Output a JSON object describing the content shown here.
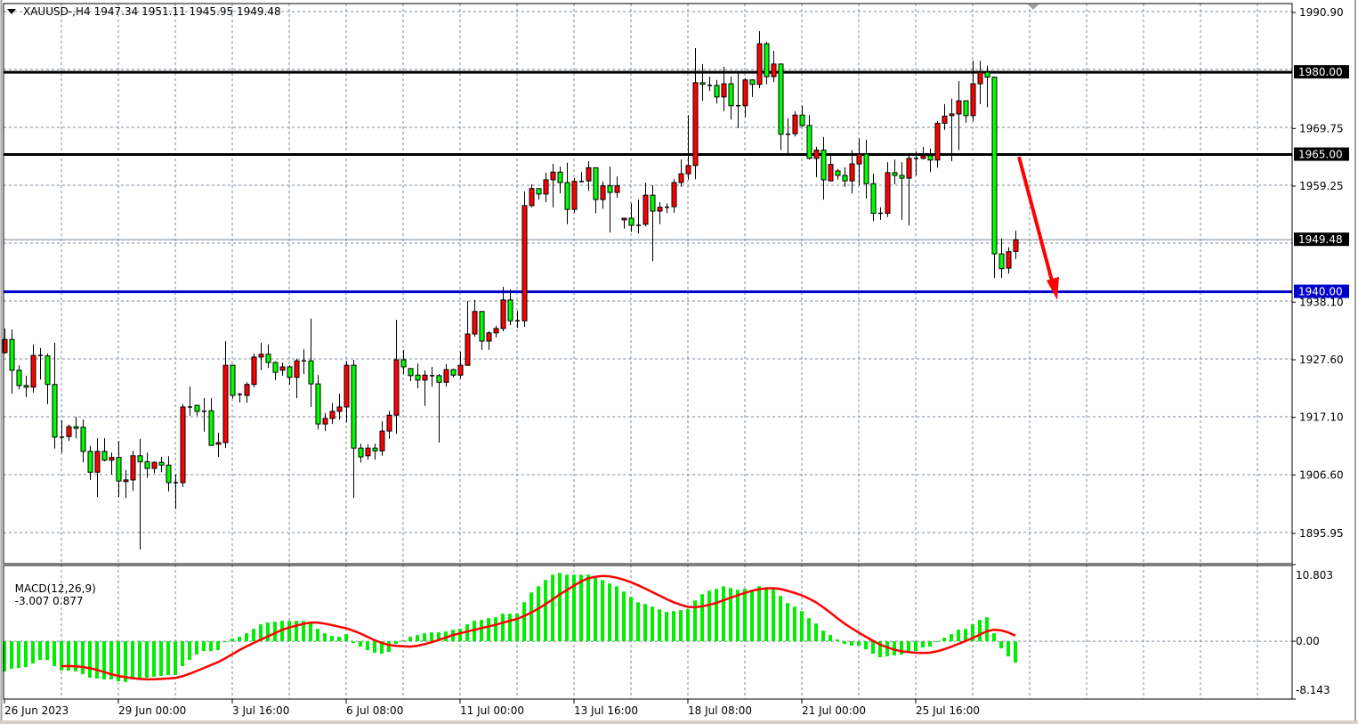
{
  "header": {
    "symbol": "XAUUSD-,H4",
    "ohlc": "1947.34 1951.11 1945.95 1949.48"
  },
  "macd_header": {
    "label": "MACD(12,26,9)",
    "values": "-3.007 0.877"
  },
  "colors": {
    "bull_candle": "#FF0000",
    "bear_candle": "#00FF00",
    "macd_histogram": "#00EE00",
    "signal_line": "#FF0000",
    "support_line": "#0000CC",
    "resistance_line": "#000000",
    "arrow": "#FF0000",
    "grid": "#778899"
  },
  "chart_data": [
    {
      "type": "candlestick",
      "symbol": "XAUUSD-",
      "timeframe": "H4",
      "ylim": [
        1890.43,
        1992.52
      ],
      "grid": true,
      "y_ticks": [
        "1990.90",
        "1969.75",
        "1959.25",
        "1938.10",
        "1927.60",
        "1917.10",
        "1906.60",
        "1895.95"
      ],
      "x_labels": [
        "26 Jun 2023",
        "29 Jun 00:00",
        "3 Jul 16:00",
        "6 Jul 08:00",
        "11 Jul 00:00",
        "13 Jul 16:00",
        "18 Jul 08:00",
        "21 Jul 00:00",
        "25 Jul 16:00"
      ],
      "bar_labels_every": 16,
      "last_price": {
        "value": 1949.48,
        "label": "1949.48"
      },
      "horizontal_lines": [
        {
          "value": 1980.0,
          "label": "1980.00",
          "color": "#000000"
        },
        {
          "value": 1965.0,
          "label": "1965.00",
          "color": "#000000"
        },
        {
          "value": 1940.0,
          "label": "1940.00",
          "color": "#0000CC"
        }
      ],
      "arrow": {
        "from_price": 1964.6,
        "to_price": 1938.5,
        "direction": "down",
        "color": "#FF0000"
      },
      "ohlc": [
        [
          1928.9,
          1933.3,
          1928.7,
          1931.3
        ],
        [
          1931.3,
          1933.1,
          1921.4,
          1925.7
        ],
        [
          1925.7,
          1926.6,
          1922.2,
          1922.9
        ],
        [
          1922.9,
          1924.7,
          1920.8,
          1922.6
        ],
        [
          1922.6,
          1930.4,
          1921.6,
          1928.4
        ],
        [
          1928.4,
          1929.7,
          1924.0,
          1928.3
        ],
        [
          1928.3,
          1928.7,
          1919.5,
          1923.1
        ],
        [
          1923.1,
          1930.7,
          1911.4,
          1913.5
        ],
        [
          1913.5,
          1916.6,
          1910.7,
          1913.4
        ],
        [
          1913.6,
          1915.8,
          1912.8,
          1915.4
        ],
        [
          1915.4,
          1917.2,
          1913.3,
          1915.1
        ],
        [
          1915.3,
          1916.7,
          1908.9,
          1910.9
        ],
        [
          1910.9,
          1911.9,
          1905.7,
          1907.1
        ],
        [
          1907.1,
          1913.3,
          1902.6,
          1910.9
        ],
        [
          1910.9,
          1913.3,
          1909.1,
          1909.3
        ],
        [
          1909.3,
          1910.7,
          1906.7,
          1909.8
        ],
        [
          1909.8,
          1912.8,
          1902.6,
          1905.5
        ],
        [
          1905.4,
          1907.5,
          1902.4,
          1905.7
        ],
        [
          1905.7,
          1911.0,
          1903.7,
          1910.1
        ],
        [
          1910.1,
          1913.2,
          1893.0,
          1909.0
        ],
        [
          1909.0,
          1910.7,
          1906.1,
          1907.8
        ],
        [
          1907.8,
          1909.1,
          1906.9,
          1908.9
        ],
        [
          1908.9,
          1909.9,
          1907.1,
          1908.4
        ],
        [
          1908.4,
          1910.0,
          1903.6,
          1905.2
        ],
        [
          1905.2,
          1906.7,
          1900.4,
          1905.1
        ],
        [
          1905.2,
          1919.5,
          1904.4,
          1919.0
        ],
        [
          1919.0,
          1922.7,
          1917.4,
          1918.9
        ],
        [
          1919.3,
          1919.3,
          1917.4,
          1918.2
        ],
        [
          1918.2,
          1920.6,
          1914.5,
          1918.1
        ],
        [
          1918.3,
          1920.6,
          1911.9,
          1912.0
        ],
        [
          1912.2,
          1914.3,
          1909.9,
          1912.5
        ],
        [
          1912.5,
          1931.0,
          1911.5,
          1926.6
        ],
        [
          1926.6,
          1926.6,
          1920.5,
          1921.1
        ],
        [
          1921.3,
          1921.6,
          1919.8,
          1921.2
        ],
        [
          1921.1,
          1923.5,
          1919.8,
          1923.1
        ],
        [
          1923.1,
          1928.7,
          1922.6,
          1928.1
        ],
        [
          1928.1,
          1930.7,
          1925.7,
          1928.6
        ],
        [
          1928.6,
          1930.4,
          1926.1,
          1927.1
        ],
        [
          1927.1,
          1927.3,
          1923.9,
          1925.3
        ],
        [
          1925.7,
          1927.1,
          1924.7,
          1926.3
        ],
        [
          1926.3,
          1926.6,
          1923.1,
          1924.4
        ],
        [
          1924.4,
          1927.8,
          1920.6,
          1927.4
        ],
        [
          1927.4,
          1929.5,
          1925.0,
          1927.3
        ],
        [
          1927.4,
          1935.1,
          1919.0,
          1923.2
        ],
        [
          1923.2,
          1924.8,
          1914.9,
          1915.9
        ],
        [
          1915.9,
          1917.9,
          1914.6,
          1916.9
        ],
        [
          1916.9,
          1919.7,
          1915.9,
          1918.2
        ],
        [
          1918.2,
          1921.4,
          1916.7,
          1919.0
        ],
        [
          1919.0,
          1927.4,
          1916.2,
          1926.6
        ],
        [
          1926.6,
          1927.6,
          1902.4,
          1911.5
        ],
        [
          1911.5,
          1912.3,
          1908.9,
          1909.9
        ],
        [
          1910.1,
          1912.2,
          1909.4,
          1911.5
        ],
        [
          1911.5,
          1912.3,
          1909.4,
          1911.0
        ],
        [
          1911.0,
          1916.4,
          1910.1,
          1914.6
        ],
        [
          1914.6,
          1918.3,
          1913.2,
          1917.5
        ],
        [
          1917.5,
          1934.9,
          1914.1,
          1927.6
        ],
        [
          1927.6,
          1929.4,
          1925.0,
          1926.3
        ],
        [
          1926.0,
          1926.1,
          1923.7,
          1924.7
        ],
        [
          1924.8,
          1926.9,
          1922.4,
          1923.9
        ],
        [
          1923.9,
          1925.7,
          1919.2,
          1924.8
        ],
        [
          1924.7,
          1926.3,
          1922.7,
          1924.6
        ],
        [
          1924.7,
          1925.0,
          1912.5,
          1923.5
        ],
        [
          1923.5,
          1926.8,
          1922.7,
          1925.8
        ],
        [
          1925.8,
          1926.0,
          1924.4,
          1924.8
        ],
        [
          1924.8,
          1929.1,
          1924.2,
          1926.6
        ],
        [
          1926.6,
          1938.3,
          1926.5,
          1932.3
        ],
        [
          1932.3,
          1938.5,
          1931.8,
          1936.4
        ],
        [
          1936.4,
          1936.5,
          1929.4,
          1931.0
        ],
        [
          1931.0,
          1932.8,
          1929.4,
          1932.5
        ],
        [
          1932.5,
          1933.8,
          1931.7,
          1933.3
        ],
        [
          1933.3,
          1940.9,
          1932.8,
          1938.5
        ],
        [
          1938.5,
          1940.4,
          1933.9,
          1934.7
        ],
        [
          1934.7,
          1936.5,
          1933.4,
          1934.6
        ],
        [
          1934.7,
          1958.3,
          1933.6,
          1955.7
        ],
        [
          1955.7,
          1959.6,
          1955.4,
          1958.8
        ],
        [
          1958.8,
          1958.8,
          1956.8,
          1957.8
        ],
        [
          1957.8,
          1961.7,
          1956.3,
          1960.4
        ],
        [
          1960.4,
          1963.3,
          1955.4,
          1961.8
        ],
        [
          1961.8,
          1962.8,
          1957.9,
          1959.9
        ],
        [
          1959.9,
          1963.5,
          1952.3,
          1955.0
        ],
        [
          1955.0,
          1960.7,
          1954.4,
          1960.1
        ],
        [
          1960.1,
          1961.8,
          1959.9,
          1960.0
        ],
        [
          1960.2,
          1963.8,
          1958.4,
          1962.6
        ],
        [
          1962.6,
          1962.6,
          1954.3,
          1956.8
        ],
        [
          1956.8,
          1960.1,
          1955.1,
          1959.3
        ],
        [
          1959.3,
          1962.8,
          1950.8,
          1958.1
        ],
        [
          1958.1,
          1961.0,
          1957.1,
          1959.3
        ],
        [
          1953.1,
          1953.4,
          1951.5,
          1953.4
        ],
        [
          1953.4,
          1956.1,
          1950.9,
          1952.1
        ],
        [
          1952.1,
          1956.8,
          1950.6,
          1952.0
        ],
        [
          1952.3,
          1959.9,
          1951.9,
          1957.6
        ],
        [
          1957.6,
          1959.4,
          1945.6,
          1954.7
        ],
        [
          1954.7,
          1956.3,
          1952.3,
          1955.4
        ],
        [
          1955.4,
          1956.1,
          1954.3,
          1955.3
        ],
        [
          1955.5,
          1960.5,
          1954.4,
          1959.9
        ],
        [
          1959.9,
          1964.1,
          1959.1,
          1961.5
        ],
        [
          1961.5,
          1972.2,
          1960.4,
          1963.0
        ],
        [
          1963.0,
          1984.4,
          1960.5,
          1978.1
        ],
        [
          1978.1,
          1981.5,
          1974.8,
          1977.8
        ],
        [
          1977.6,
          1979.2,
          1976.6,
          1977.5
        ],
        [
          1977.6,
          1978.6,
          1974.3,
          1975.5
        ],
        [
          1975.5,
          1981.0,
          1972.9,
          1977.9
        ],
        [
          1977.9,
          1979.2,
          1971.4,
          1973.9
        ],
        [
          1973.9,
          1980.2,
          1969.8,
          1973.8
        ],
        [
          1973.9,
          1978.9,
          1971.9,
          1978.6
        ],
        [
          1978.6,
          1978.7,
          1975.5,
          1977.8
        ],
        [
          1977.8,
          1987.5,
          1977.1,
          1985.2
        ],
        [
          1985.2,
          1985.5,
          1977.8,
          1979.2
        ],
        [
          1979.2,
          1983.9,
          1978.2,
          1981.5
        ],
        [
          1981.5,
          1981.6,
          1965.8,
          1968.7
        ],
        [
          1968.7,
          1971.6,
          1965.1,
          1968.6
        ],
        [
          1968.8,
          1972.9,
          1968.3,
          1972.2
        ],
        [
          1972.2,
          1973.9,
          1970.0,
          1970.3
        ],
        [
          1970.3,
          1972.2,
          1964.1,
          1964.3
        ],
        [
          1964.3,
          1966.4,
          1960.9,
          1965.8
        ],
        [
          1965.8,
          1968.2,
          1956.8,
          1960.4
        ],
        [
          1960.2,
          1965.1,
          1960.2,
          1963.2
        ],
        [
          1962.0,
          1962.4,
          1960.4,
          1961.2
        ],
        [
          1961.2,
          1962.7,
          1959.1,
          1960.2
        ],
        [
          1960.2,
          1965.8,
          1957.9,
          1963.3
        ],
        [
          1963.3,
          1967.9,
          1959.4,
          1965.1
        ],
        [
          1965.1,
          1967.7,
          1957.0,
          1959.7
        ],
        [
          1959.7,
          1961.5,
          1952.9,
          1954.3
        ],
        [
          1954.3,
          1955.4,
          1953.1,
          1954.2
        ],
        [
          1954.3,
          1963.6,
          1953.6,
          1961.7
        ],
        [
          1961.7,
          1964.1,
          1959.6,
          1961.2
        ],
        [
          1961.2,
          1963.6,
          1953.1,
          1960.7
        ],
        [
          1960.7,
          1964.8,
          1952.1,
          1964.3
        ],
        [
          1964.3,
          1965.6,
          1961.2,
          1964.2
        ],
        [
          1964.3,
          1966.4,
          1964.1,
          1964.8
        ],
        [
          1964.8,
          1966.1,
          1961.8,
          1964.0
        ],
        [
          1964.0,
          1971.1,
          1962.6,
          1970.7
        ],
        [
          1970.7,
          1974.2,
          1969.5,
          1972.0
        ],
        [
          1972.1,
          1975.2,
          1963.8,
          1972.4
        ],
        [
          1972.4,
          1978.4,
          1965.8,
          1974.8
        ],
        [
          1974.8,
          1974.8,
          1970.8,
          1972.1
        ],
        [
          1972.1,
          1982.1,
          1971.1,
          1977.9
        ],
        [
          1977.9,
          1982.1,
          1974.2,
          1980.0
        ],
        [
          1980.0,
          1981.2,
          1973.6,
          1979.1
        ],
        [
          1979.1,
          1979.2,
          1942.5,
          1946.9
        ],
        [
          1946.9,
          1949.7,
          1942.5,
          1944.2
        ],
        [
          1944.3,
          1948.1,
          1943.3,
          1947.3
        ],
        [
          1947.34,
          1951.11,
          1945.95,
          1949.48
        ]
      ]
    },
    {
      "type": "bar+line",
      "indicator": "MACD(12,26,9)",
      "ylim": [
        -8.143,
        10.803
      ],
      "y_ticks": [
        "10.803",
        "0.00",
        "-8.143"
      ],
      "signal": "SMA(9) of MACD",
      "last_macd": -3.007,
      "last_signal": 0.877,
      "macd": [
        -4.25,
        -3.88,
        -3.75,
        -3.63,
        -3.13,
        -2.63,
        -2.63,
        -3.5,
        -4.13,
        -4.13,
        -4.25,
        -4.63,
        -5.13,
        -5.25,
        -5.38,
        -5.38,
        -5.63,
        -5.75,
        -5.38,
        -5.25,
        -5.13,
        -5,
        -4.88,
        -4.75,
        -4.75,
        -3.5,
        -2.63,
        -1.88,
        -1.38,
        -1.38,
        -1.25,
        -0.13,
        0.38,
        0.63,
        1.13,
        1.75,
        2.38,
        2.63,
        2.75,
        2.88,
        2.88,
        2.88,
        2.88,
        2.63,
        1.75,
        1.13,
        0.75,
        0.63,
        1,
        -0.25,
        -0.75,
        -1.25,
        -1.63,
        -1.75,
        -1.5,
        -0.38,
        0.13,
        0.63,
        0.88,
        1.13,
        1.25,
        1.25,
        1.38,
        1.63,
        1.75,
        2.38,
        2.88,
        3,
        3.25,
        3.38,
        3.88,
        3.88,
        3.88,
        5.5,
        6.88,
        7.75,
        8.63,
        9.38,
        9.63,
        9.38,
        9.38,
        9.38,
        9.38,
        9,
        8.63,
        8.13,
        7.75,
        7,
        6.25,
        5.5,
        5.25,
        4.88,
        4.5,
        4.13,
        4.25,
        4.38,
        4.5,
        5.75,
        6.63,
        7.13,
        7.38,
        7.75,
        7.5,
        7.25,
        7.38,
        7.25,
        7.75,
        7.63,
        7.38,
        6.38,
        5.38,
        4.88,
        4.25,
        3.25,
        2.5,
        1.5,
        0.88,
        0.25,
        -0.38,
        -0.63,
        -0.63,
        -1.13,
        -1.75,
        -2.25,
        -2.13,
        -2,
        -1.88,
        -1.38,
        -1.38,
        -0.88,
        -0.75,
        -0.13,
        0.5,
        1,
        1.63,
        1.75,
        2.38,
        3,
        3.38,
        1.13,
        -1,
        -2.13,
        -3.007
      ]
    }
  ]
}
